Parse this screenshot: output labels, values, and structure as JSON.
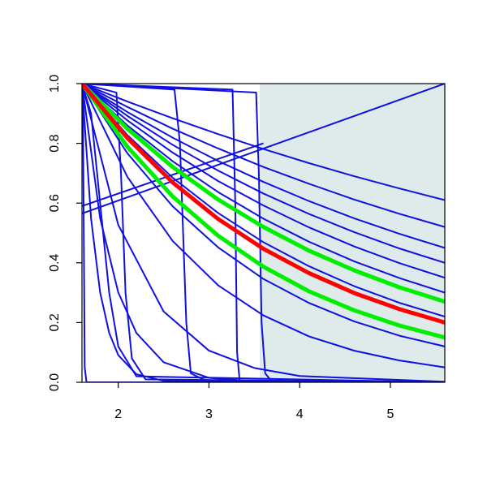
{
  "chart_data": {
    "type": "line",
    "x": [
      1.6,
      2.1,
      2.6,
      3.1,
      3.6,
      4.1,
      4.6,
      5.1,
      5.6
    ],
    "xlim": [
      1.6,
      5.6
    ],
    "ylim": [
      0,
      1
    ],
    "xticks": [
      2,
      3,
      4,
      5
    ],
    "yticks": [
      {
        "value": 0,
        "label": "0.0"
      },
      {
        "value": 0.2,
        "label": "0.2"
      },
      {
        "value": 0.4,
        "label": "0.4"
      },
      {
        "value": 0.6,
        "label": "0.6"
      },
      {
        "value": 0.8,
        "label": "0.8"
      },
      {
        "value": 1,
        "label": "1.0"
      }
    ],
    "grid": false,
    "shaded_region": {
      "xmin": 3.56,
      "xmax": 5.6,
      "color": "#dfeaea"
    },
    "series": [
      {
        "color": "#1010e0",
        "linewidth": 2,
        "values": [
          1,
          0.94,
          0.884,
          0.831,
          0.781,
          0.734,
          0.69,
          0.649,
          0.61
        ]
      },
      {
        "color": "#1010e0",
        "linewidth": 2,
        "values": [
          1,
          0.922,
          0.849,
          0.783,
          0.721,
          0.665,
          0.612,
          0.564,
          0.52
        ]
      },
      {
        "color": "#1010e0",
        "linewidth": 2,
        "values": [
          1,
          0.905,
          0.819,
          0.741,
          0.671,
          0.607,
          0.549,
          0.497,
          0.45
        ]
      },
      {
        "color": "#1010e0",
        "linewidth": 2,
        "values": [
          1,
          0.892,
          0.795,
          0.709,
          0.632,
          0.564,
          0.503,
          0.448,
          0.4
        ]
      },
      {
        "color": "#1010e0",
        "linewidth": 2,
        "values": [
          1,
          0.877,
          0.769,
          0.674,
          0.592,
          0.519,
          0.455,
          0.399,
          0.35
        ]
      },
      {
        "color": "#1010e0",
        "linewidth": 2,
        "values": [
          1,
          0.86,
          0.74,
          0.637,
          0.548,
          0.471,
          0.405,
          0.349,
          0.3
        ]
      },
      {
        "color": "#1010e0",
        "linewidth": 2,
        "values": [
          1,
          0.828,
          0.685,
          0.567,
          0.469,
          0.389,
          0.322,
          0.266,
          0.22
        ]
      },
      {
        "color": "#1010e0",
        "linewidth": 2,
        "values": [
          1,
          0.767,
          0.589,
          0.452,
          0.346,
          0.266,
          0.204,
          0.156,
          0.12
        ]
      },
      {
        "color": "#1010e0",
        "linewidth": 2,
        "values": [
          1,
          0.688,
          0.473,
          0.325,
          0.224,
          0.154,
          0.106,
          0.073,
          0.05
        ]
      },
      {
        "color": "#1010e0",
        "linewidth": 2,
        "x": [
          1.6,
          1.7,
          1.8,
          1.9,
          2.0,
          2.2,
          2.5,
          5.6
        ],
        "values": [
          1,
          0.549,
          0.301,
          0.165,
          0.091,
          0.027,
          0.005,
          0
        ]
      },
      {
        "color": "#1010e0",
        "linewidth": 2,
        "x": [
          1.6,
          1.8,
          2.0,
          2.2,
          2.5,
          3.0,
          3.5,
          5.6
        ],
        "values": [
          1,
          0.549,
          0.301,
          0.165,
          0.067,
          0.015,
          0.003,
          0
        ]
      },
      {
        "color": "#1010e0",
        "linewidth": 2,
        "x": [
          1.6,
          2.0,
          2.5,
          3.0,
          3.5,
          4.0,
          5.6
        ],
        "values": [
          1,
          0.527,
          0.237,
          0.106,
          0.048,
          0.021,
          0.002
        ]
      },
      {
        "color": "#1010e0",
        "linewidth": 2,
        "x": [
          1.6,
          1.61,
          1.62,
          1.63,
          1.65,
          5.6
        ],
        "values": [
          1,
          0.95,
          0.5,
          0.05,
          0,
          0
        ]
      },
      {
        "color": "#1010e0",
        "linewidth": 2,
        "x": [
          1.6,
          1.7,
          1.8,
          1.9,
          2.0,
          2.2,
          5.6
        ],
        "values": [
          1,
          0.9,
          0.6,
          0.3,
          0.12,
          0.02,
          0
        ]
      },
      {
        "color": "#1010e0",
        "linewidth": 2,
        "x": [
          1.6,
          1.98,
          2.03,
          2.08,
          2.15,
          2.3,
          5.6
        ],
        "values": [
          1,
          0.97,
          0.7,
          0.3,
          0.08,
          0.01,
          0
        ]
      },
      {
        "color": "#1010e0",
        "linewidth": 2,
        "x": [
          1.6,
          2.62,
          2.68,
          2.75,
          2.8,
          3.0,
          5.6
        ],
        "values": [
          1,
          0.98,
          0.8,
          0.2,
          0.03,
          0,
          0
        ]
      },
      {
        "color": "#1010e0",
        "linewidth": 2,
        "x": [
          1.6,
          3.26,
          3.29,
          3.31,
          3.34,
          5.6
        ],
        "values": [
          1,
          0.98,
          0.6,
          0.1,
          0,
          0
        ]
      },
      {
        "color": "#1010e0",
        "linewidth": 2,
        "x": [
          1.6,
          3.52,
          3.55,
          3.58,
          3.62,
          3.7,
          5.6
        ],
        "values": [
          1,
          0.97,
          0.7,
          0.2,
          0.03,
          0,
          0
        ]
      },
      {
        "color": "#1010e0",
        "linewidth": 2,
        "x": [
          1.6,
          5.6
        ],
        "values": [
          0.565,
          1.0
        ]
      },
      {
        "color": "#1010e0",
        "linewidth": 2,
        "x": [
          1.6,
          3.6
        ],
        "values": [
          0.59,
          0.8
        ]
      },
      {
        "color": "#00ee00",
        "linewidth": 5,
        "values": [
          1,
          0.849,
          0.721,
          0.612,
          0.52,
          0.441,
          0.375,
          0.318,
          0.27
        ]
      },
      {
        "color": "#00ee00",
        "linewidth": 5,
        "values": [
          1,
          0.789,
          0.622,
          0.491,
          0.387,
          0.305,
          0.241,
          0.19,
          0.15
        ]
      },
      {
        "color": "#ff0000",
        "linewidth": 5,
        "values": [
          1,
          0.818,
          0.669,
          0.547,
          0.447,
          0.366,
          0.299,
          0.245,
          0.2
        ]
      }
    ]
  }
}
